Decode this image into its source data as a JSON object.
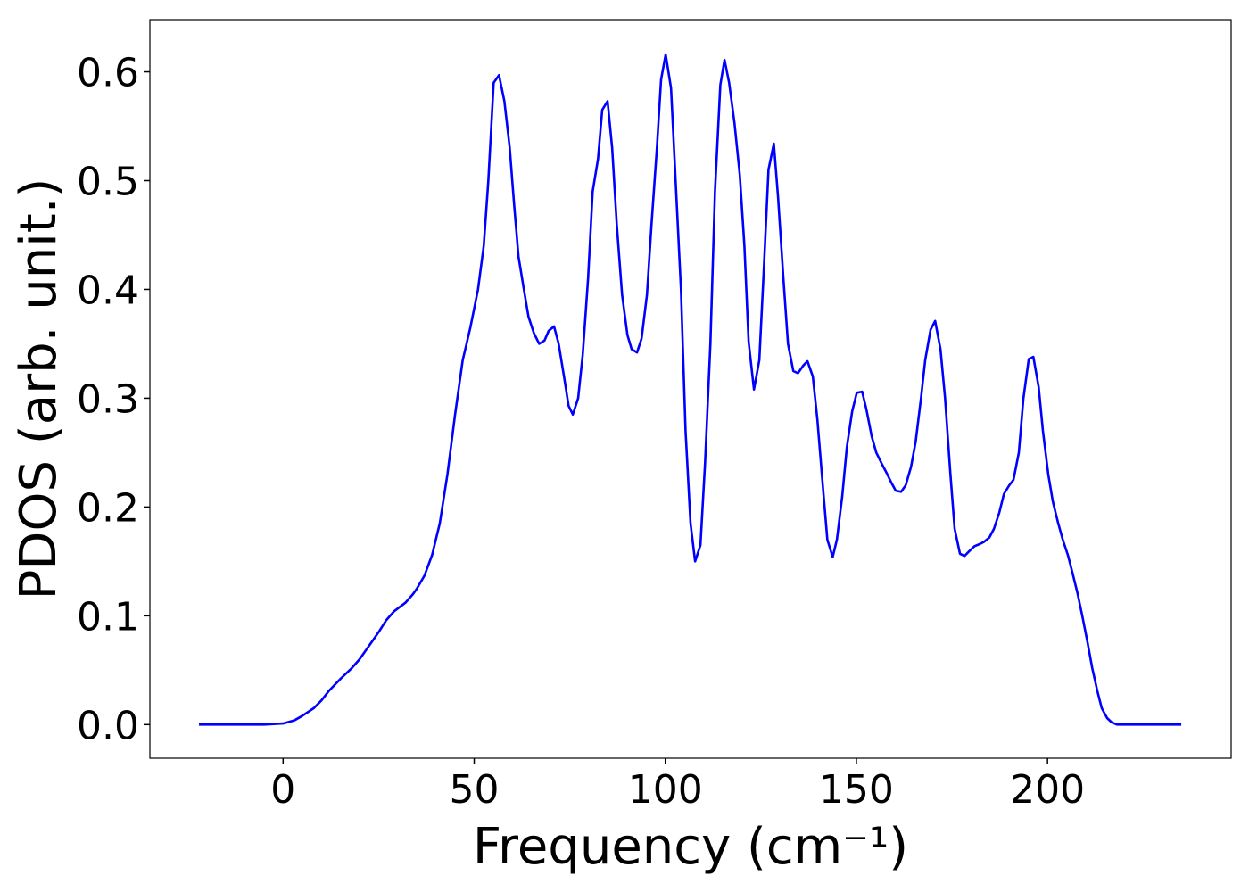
{
  "chart_data": {
    "type": "line",
    "x_label": "Frequency (cm⁻¹)",
    "y_label": "PDOS (arb. unit.)",
    "x": [
      -22,
      -5,
      0,
      3,
      5,
      8,
      10,
      12,
      15,
      18,
      20,
      23,
      25,
      27,
      29,
      32,
      34,
      35,
      37,
      39,
      41,
      43,
      45,
      46,
      47,
      49,
      51,
      52.5,
      53.7,
      55.1,
      56.5,
      57.9,
      59.3,
      60.4,
      61.6,
      63,
      64.2,
      65.6,
      67,
      68.4,
      69.5,
      70.9,
      72.1,
      73.5,
      74.7,
      75.8,
      77.2,
      78.4,
      79.8,
      81,
      82.4,
      83.5,
      84.9,
      86.1,
      87.3,
      88.7,
      90.1,
      91.2,
      92.6,
      93.8,
      95.2,
      96.4,
      97.8,
      98.9,
      100.1,
      101.5,
      102.7,
      104.1,
      105.3,
      106.6,
      107.8,
      109.2,
      110.4,
      111.8,
      113,
      114.4,
      115.5,
      116.7,
      118.1,
      119.5,
      120.7,
      121.8,
      123.2,
      124.6,
      125.8,
      127,
      128.4,
      129.5,
      130.9,
      132.1,
      133.5,
      134.7,
      136.1,
      137.2,
      138.6,
      139.8,
      141.2,
      142.4,
      143.8,
      144.9,
      146.3,
      147.5,
      148.9,
      150.1,
      151.5,
      152.6,
      154,
      155.2,
      156.6,
      157.8,
      159.2,
      160.3,
      161.7,
      162.9,
      164.3,
      165.5,
      166.9,
      168,
      169.4,
      170.6,
      172,
      173.2,
      174.6,
      175.7,
      177.1,
      178.3,
      179.7,
      180.9,
      182.3,
      183.4,
      184.8,
      186,
      187.4,
      188.6,
      190,
      191.1,
      192.5,
      193.7,
      195.1,
      196.3,
      197.7,
      198.8,
      200.2,
      201.4,
      202.8,
      204,
      205.4,
      206.5,
      207.9,
      209.1,
      210.5,
      211.7,
      213.1,
      214.2,
      215.6,
      216.8,
      218.2,
      235
    ],
    "series": [
      {
        "name": "PDOS",
        "color": "#0000ff",
        "values": [
          0,
          0,
          0.001,
          0.004,
          0.008,
          0.015,
          0.022,
          0.031,
          0.042,
          0.052,
          0.06,
          0.075,
          0.085,
          0.096,
          0.104,
          0.112,
          0.12,
          0.125,
          0.137,
          0.156,
          0.185,
          0.23,
          0.285,
          0.31,
          0.335,
          0.365,
          0.4,
          0.44,
          0.5,
          0.59,
          0.597,
          0.573,
          0.53,
          0.48,
          0.43,
          0.4,
          0.375,
          0.36,
          0.35,
          0.353,
          0.362,
          0.366,
          0.35,
          0.32,
          0.293,
          0.285,
          0.3,
          0.34,
          0.41,
          0.49,
          0.52,
          0.565,
          0.573,
          0.53,
          0.46,
          0.395,
          0.358,
          0.345,
          0.342,
          0.355,
          0.395,
          0.46,
          0.53,
          0.593,
          0.616,
          0.585,
          0.5,
          0.4,
          0.27,
          0.185,
          0.15,
          0.165,
          0.24,
          0.35,
          0.49,
          0.588,
          0.611,
          0.59,
          0.553,
          0.505,
          0.44,
          0.352,
          0.308,
          0.335,
          0.42,
          0.51,
          0.534,
          0.485,
          0.41,
          0.35,
          0.325,
          0.323,
          0.33,
          0.334,
          0.32,
          0.28,
          0.22,
          0.17,
          0.154,
          0.17,
          0.21,
          0.255,
          0.288,
          0.305,
          0.306,
          0.29,
          0.265,
          0.25,
          0.24,
          0.232,
          0.222,
          0.215,
          0.214,
          0.22,
          0.237,
          0.26,
          0.3,
          0.335,
          0.363,
          0.371,
          0.345,
          0.3,
          0.23,
          0.18,
          0.157,
          0.155,
          0.16,
          0.164,
          0.166,
          0.168,
          0.172,
          0.18,
          0.195,
          0.212,
          0.22,
          0.225,
          0.25,
          0.3,
          0.336,
          0.338,
          0.31,
          0.27,
          0.23,
          0.205,
          0.185,
          0.17,
          0.155,
          0.14,
          0.12,
          0.1,
          0.075,
          0.052,
          0.03,
          0.015,
          0.006,
          0.002,
          0,
          0
        ]
      }
    ],
    "xlim": [
      -34.85,
      248.05
    ],
    "ylim": [
      -0.0309,
      0.648
    ],
    "xticks": [
      0,
      50,
      100,
      150,
      200
    ],
    "yticks": [
      {
        "value": 0,
        "label": "0.0"
      },
      {
        "value": 0.1,
        "label": "0.1"
      },
      {
        "value": 0.2,
        "label": "0.2"
      },
      {
        "value": 0.3,
        "label": "0.3"
      },
      {
        "value": 0.4,
        "label": "0.4"
      },
      {
        "value": 0.5,
        "label": "0.5"
      },
      {
        "value": 0.6,
        "label": "0.6"
      }
    ]
  }
}
